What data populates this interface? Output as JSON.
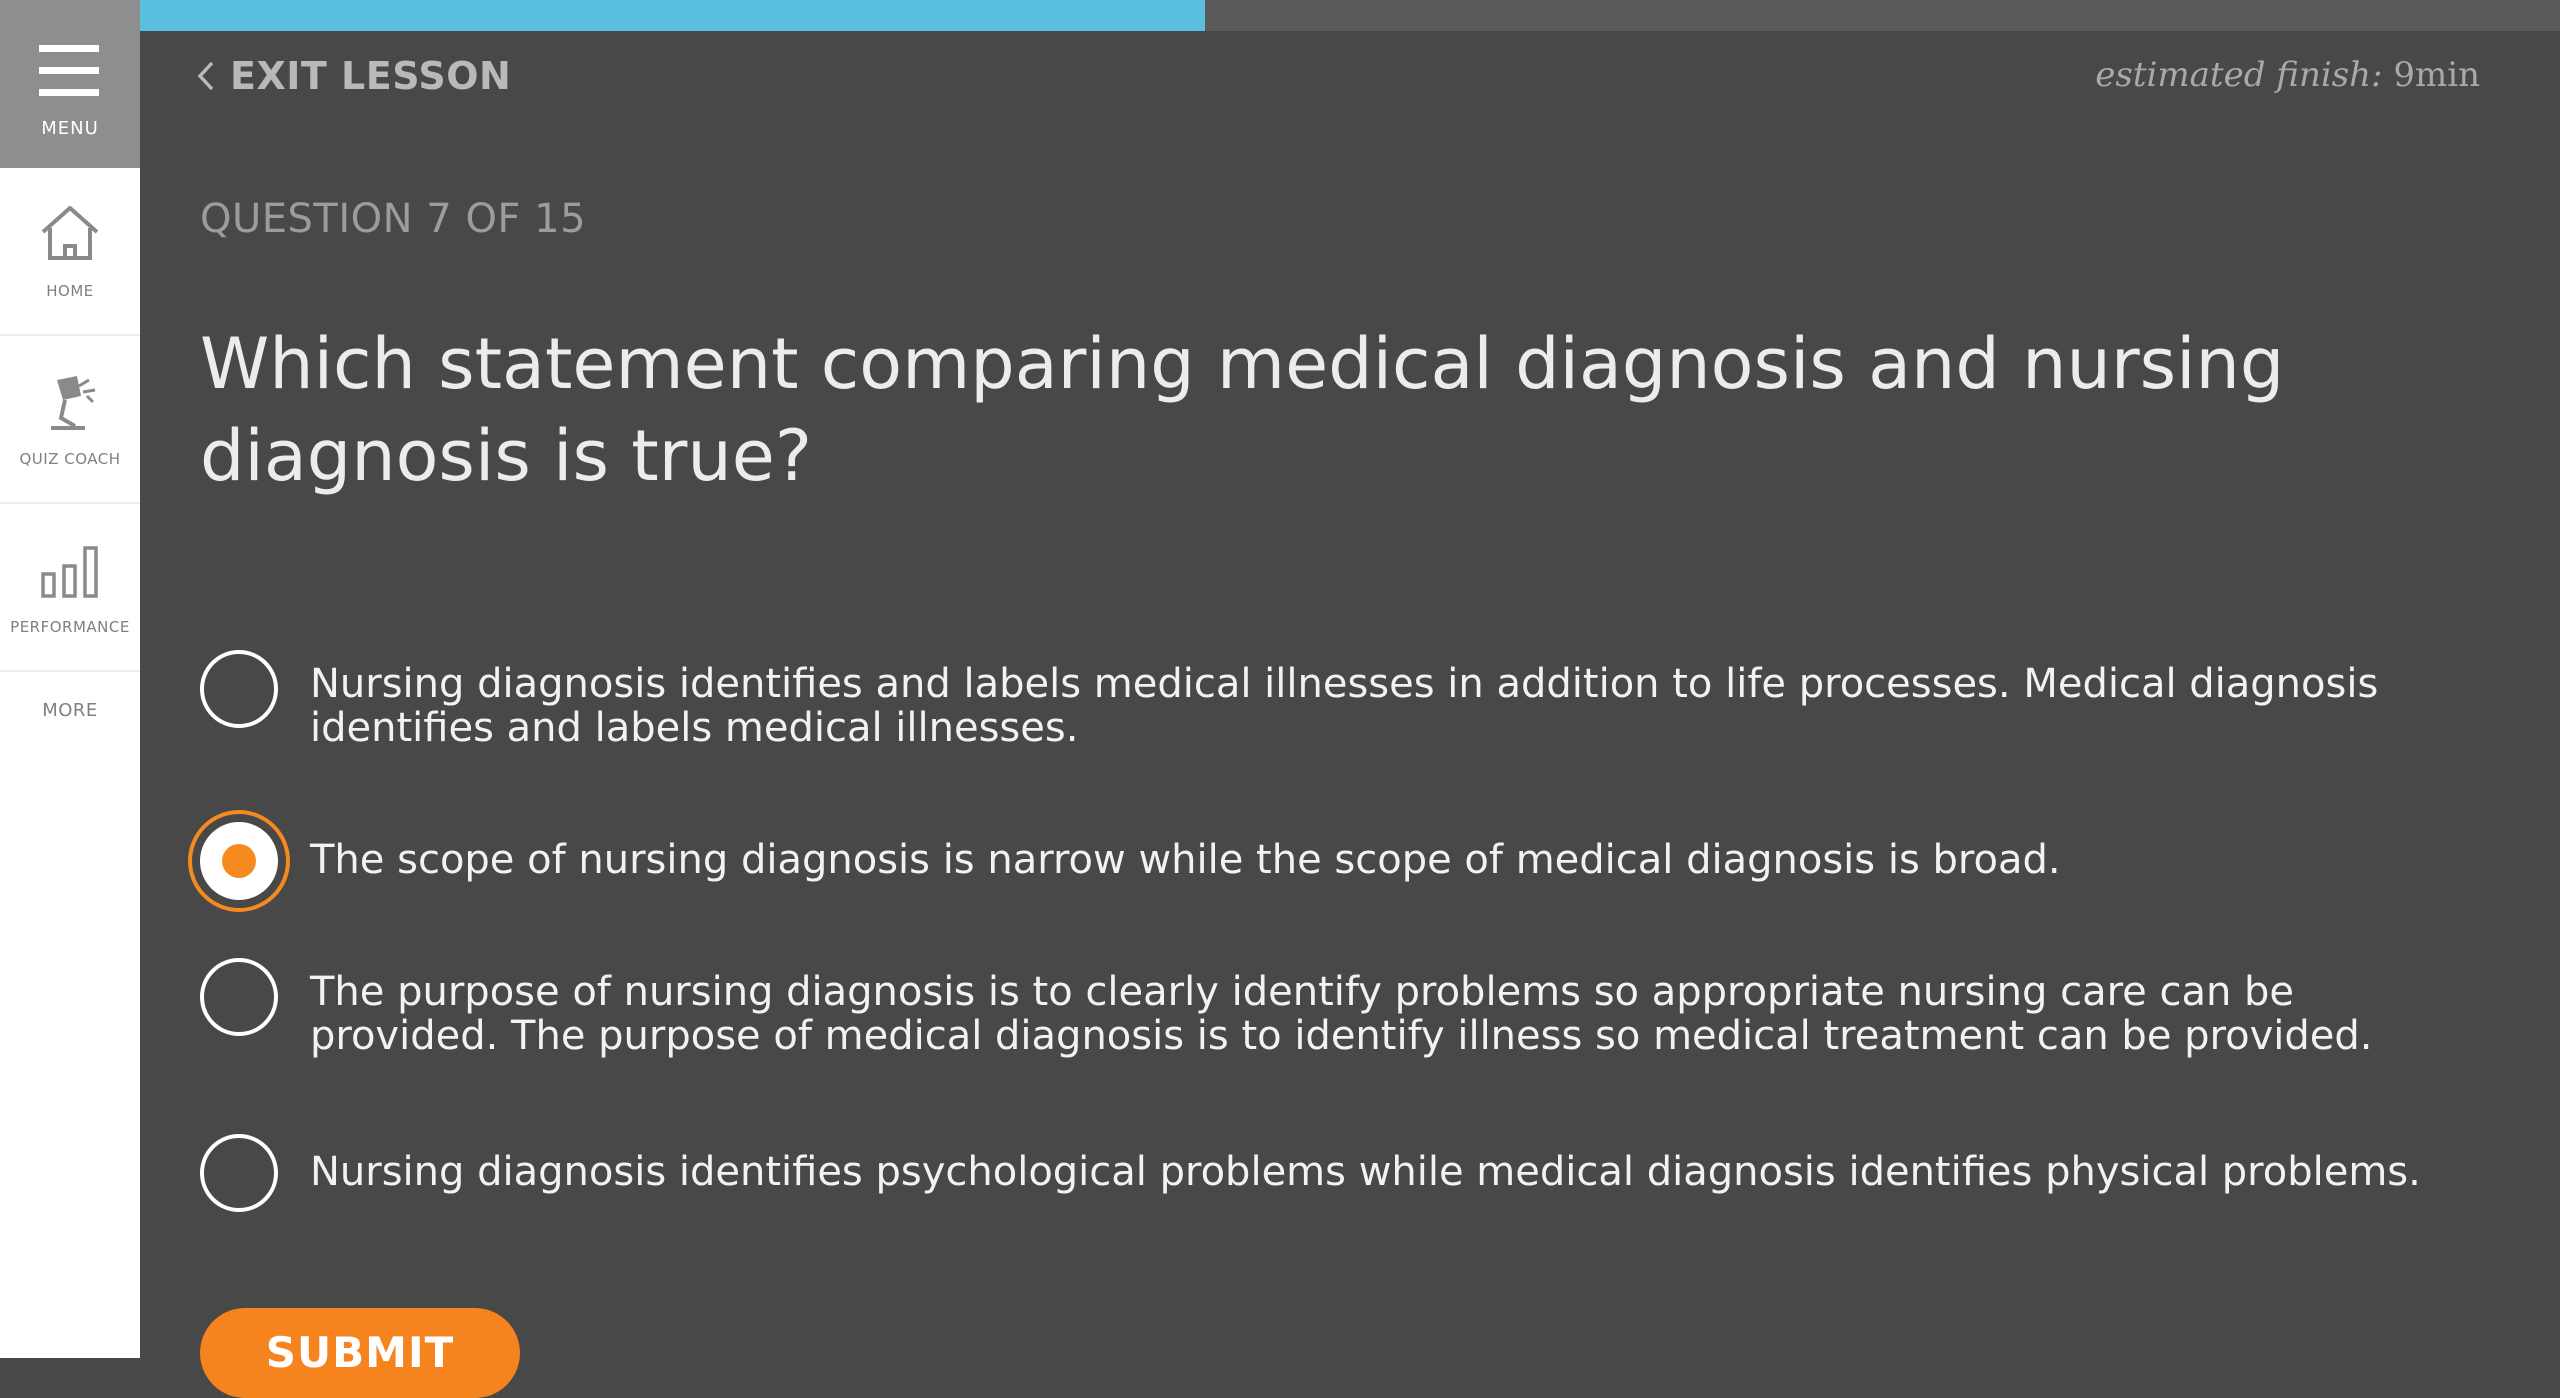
{
  "sidebar": {
    "menu_label": "MENU",
    "items": [
      {
        "label": "HOME"
      },
      {
        "label": "QUIZ COACH"
      },
      {
        "label": "PERFORMANCE"
      }
    ],
    "more_label": "MORE"
  },
  "progress": {
    "fraction": 0.44
  },
  "header": {
    "exit_label": "EXIT LESSON",
    "finish_label": "estimated finish:",
    "finish_value": "9min"
  },
  "question": {
    "counter": "QUESTION 7 OF 15",
    "text": "Which statement comparing medical diagnosis and nursing diagnosis is true?"
  },
  "options": [
    {
      "text": "Nursing diagnosis identifies and labels medical illnesses in addition to life processes. Medical diagnosis identifies and labels medical illnesses.",
      "selected": false
    },
    {
      "text": "The scope of nursing diagnosis is narrow while the scope of medical diagnosis is broad.",
      "selected": true
    },
    {
      "text": "The purpose of nursing diagnosis is to clearly identify problems so appropriate nursing care can be provided. The purpose of medical diagnosis is to identify illness so medical treatment can be provided.",
      "selected": false
    },
    {
      "text": "Nursing diagnosis identifies psychological problems while medical diagnosis identifies physical problems.",
      "selected": false
    }
  ],
  "submit_label": "SUBMIT",
  "colors": {
    "accent": "#f5841f",
    "progress": "#5bbfdf",
    "background": "#484848"
  }
}
